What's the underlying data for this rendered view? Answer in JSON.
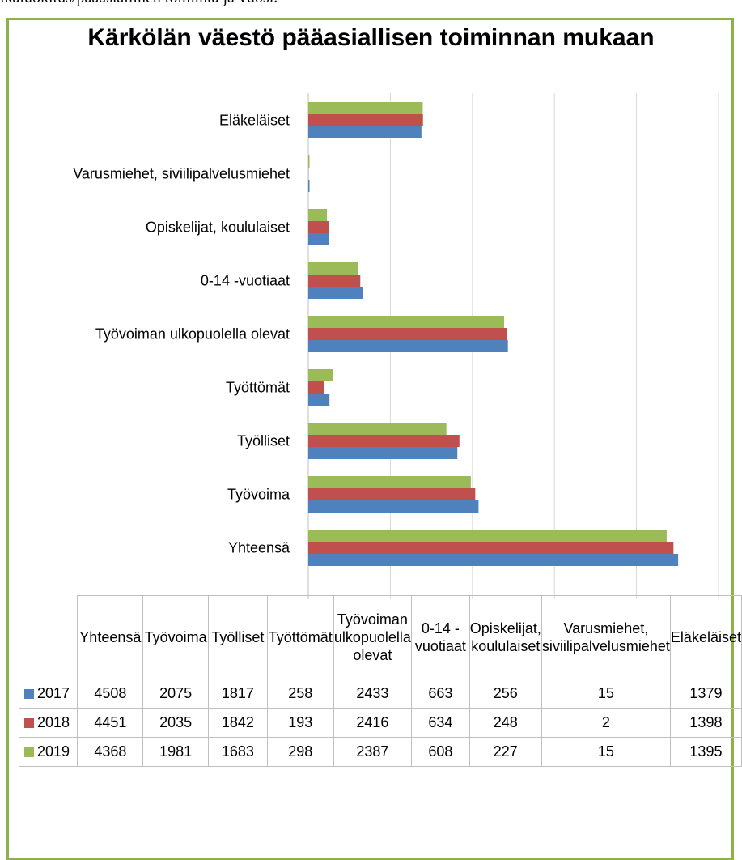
{
  "page": {
    "top_text": "ikäluokitus/pääasiallinen toiminta ja vuosi."
  },
  "chart_data": {
    "type": "bar",
    "orientation": "horizontal",
    "title": "Kärkölän väestö pääasiallisen toiminnan mukaan",
    "categories": [
      "Yhteensä",
      "Työvoima",
      "Työlliset",
      "Työttömät",
      "Työvoiman ulkopuolella olevat",
      "0-14 -vuotiaat",
      "Opiskelijat, koululaiset",
      "Varusmiehet, siviilipalvelusmiehet",
      "Eläkeläiset"
    ],
    "series": [
      {
        "name": "2017",
        "color": "#4f81bd",
        "values": [
          4508,
          2075,
          1817,
          258,
          2433,
          663,
          256,
          15,
          1379
        ]
      },
      {
        "name": "2018",
        "color": "#c0504d",
        "values": [
          4451,
          2035,
          1842,
          193,
          2416,
          634,
          248,
          2,
          1398
        ]
      },
      {
        "name": "2019",
        "color": "#9bbb59",
        "values": [
          4368,
          1981,
          1683,
          298,
          2387,
          608,
          227,
          15,
          1395
        ]
      }
    ],
    "xlim": [
      0,
      5000
    ],
    "xticks": [
      "0",
      "1000",
      "2000",
      "3000",
      "4000",
      "5000"
    ],
    "grid": true,
    "legend": "data-table-below",
    "table": {
      "headers": [
        "Yhteensä",
        "Työvoima",
        "Työlliset",
        "Työttömät",
        "Työvoiman ulkopuolella olevat",
        "0-14 -vuotiaat",
        "Opiskelijat, koululaiset",
        "Varusmiehet, siviilipalvelusmiehet",
        "Eläkeläiset"
      ],
      "rows": [
        {
          "label": "2017",
          "cells": [
            "4508",
            "2075",
            "1817",
            "258",
            "2433",
            "663",
            "256",
            "15",
            "1379"
          ]
        },
        {
          "label": "2018",
          "cells": [
            "4451",
            "2035",
            "1842",
            "193",
            "2416",
            "634",
            "248",
            "2",
            "1398"
          ]
        },
        {
          "label": "2019",
          "cells": [
            "4368",
            "1981",
            "1683",
            "298",
            "2387",
            "608",
            "227",
            "15",
            "1395"
          ]
        }
      ]
    }
  }
}
